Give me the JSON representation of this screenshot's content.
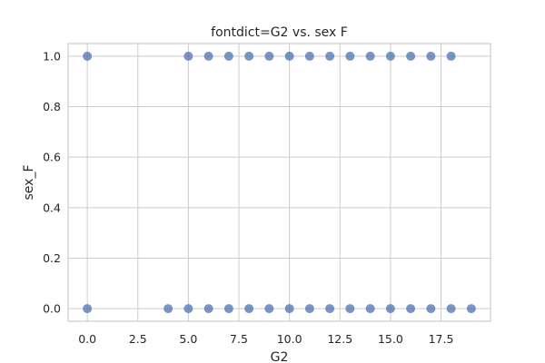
{
  "chart_data": {
    "type": "scatter",
    "title": "fontdict=G2 vs. sex F",
    "xlabel": "G2",
    "ylabel": "sex_F",
    "xlim": [
      -0.95,
      19.95
    ],
    "ylim": [
      -0.05,
      1.05
    ],
    "xticks": [
      0.0,
      2.5,
      5.0,
      7.5,
      10.0,
      12.5,
      15.0,
      17.5
    ],
    "xtick_labels": [
      "0.0",
      "2.5",
      "5.0",
      "7.5",
      "10.0",
      "12.5",
      "15.0",
      "17.5"
    ],
    "yticks": [
      0.0,
      0.2,
      0.4,
      0.6,
      0.8,
      1.0
    ],
    "ytick_labels": [
      "0.0",
      "0.2",
      "0.4",
      "0.6",
      "0.8",
      "1.0"
    ],
    "grid": true,
    "legend": "none",
    "marker_color": "#4c72b0",
    "points": [
      {
        "x": 0,
        "y": 1
      },
      {
        "x": 5,
        "y": 1
      },
      {
        "x": 6,
        "y": 1
      },
      {
        "x": 7,
        "y": 1
      },
      {
        "x": 8,
        "y": 1
      },
      {
        "x": 9,
        "y": 1
      },
      {
        "x": 10,
        "y": 1
      },
      {
        "x": 11,
        "y": 1
      },
      {
        "x": 12,
        "y": 1
      },
      {
        "x": 13,
        "y": 1
      },
      {
        "x": 14,
        "y": 1
      },
      {
        "x": 15,
        "y": 1
      },
      {
        "x": 16,
        "y": 1
      },
      {
        "x": 17,
        "y": 1
      },
      {
        "x": 18,
        "y": 1
      },
      {
        "x": 0,
        "y": 0
      },
      {
        "x": 4,
        "y": 0
      },
      {
        "x": 5,
        "y": 0
      },
      {
        "x": 6,
        "y": 0
      },
      {
        "x": 7,
        "y": 0
      },
      {
        "x": 8,
        "y": 0
      },
      {
        "x": 9,
        "y": 0
      },
      {
        "x": 10,
        "y": 0
      },
      {
        "x": 11,
        "y": 0
      },
      {
        "x": 12,
        "y": 0
      },
      {
        "x": 13,
        "y": 0
      },
      {
        "x": 14,
        "y": 0
      },
      {
        "x": 15,
        "y": 0
      },
      {
        "x": 16,
        "y": 0
      },
      {
        "x": 17,
        "y": 0
      },
      {
        "x": 18,
        "y": 0
      },
      {
        "x": 19,
        "y": 0
      }
    ]
  }
}
